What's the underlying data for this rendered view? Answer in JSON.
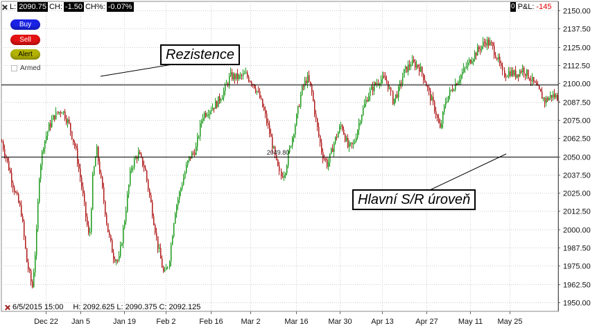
{
  "header": {
    "last_label": "L:",
    "last_value": "2090.75",
    "change_label": "CH:",
    "change_value": "-1.50",
    "change_pct_label": "CH%:",
    "change_pct_value": "-0.07%",
    "position_value": "0",
    "pl_label": "P&L:",
    "pl_value": "-145"
  },
  "trade_buttons": {
    "buy": "Buy",
    "sell": "Sell",
    "alert": "Alert",
    "armed": "Armed"
  },
  "annotations": {
    "resistance": "Rezistence",
    "sr_level": "Hlavní S/R úroveň",
    "level_tag": "2049.80"
  },
  "bar_info": {
    "date": "6/5/2015 15:00",
    "high": "H: 2092.625",
    "low": "L: 2090.375",
    "close": "C: 2092.125"
  },
  "colors": {
    "up": "#1a9a1a",
    "down": "#b01818",
    "grid": "#cccccc",
    "level_line": "#000000"
  },
  "chart_data": {
    "type": "candlestick",
    "title": "",
    "xlabel": "",
    "ylabel": "",
    "ylim": [
      1943.75,
      2156.25
    ],
    "y_ticks": [
      1950.0,
      1962.5,
      1975.0,
      1987.5,
      2000.0,
      2012.5,
      2025.0,
      2037.5,
      2050.0,
      2062.5,
      2075.0,
      2087.5,
      2100.0,
      2112.5,
      2125.0,
      2137.5,
      2150.0
    ],
    "y_tick_labels": [
      "1950.00",
      "1962.50",
      "1975.00",
      "1987.50",
      "2000.00",
      "2012.50",
      "2025.00",
      "2037.50",
      "2050.00",
      "2062.50",
      "2075.00",
      "2087.50",
      "2100.00",
      "2112.50",
      "2125.00",
      "2137.50",
      "2150.00"
    ],
    "x_labels": [
      "Dec 22",
      "Jan 5",
      "Jan 19",
      "Feb 2",
      "Feb 16",
      "Mar 2",
      "Mar 16",
      "Mar 30",
      "Apr 13",
      "Apr 27",
      "May 11",
      "May 25"
    ],
    "x_label_positions": [
      0.08,
      0.142,
      0.22,
      0.295,
      0.376,
      0.447,
      0.529,
      0.608,
      0.684,
      0.763,
      0.842,
      0.913
    ],
    "grid": true,
    "horizontal_levels": [
      {
        "value": 2099.0,
        "label": ""
      },
      {
        "value": 2049.8,
        "label": "2049.80"
      }
    ],
    "price_path": [
      [
        0.0,
        2060
      ],
      [
        0.01,
        2046
      ],
      [
        0.022,
        2028
      ],
      [
        0.035,
        2012
      ],
      [
        0.045,
        1978
      ],
      [
        0.055,
        1960
      ],
      [
        0.062,
        1992
      ],
      [
        0.068,
        2040
      ],
      [
        0.075,
        2058
      ],
      [
        0.085,
        2070
      ],
      [
        0.095,
        2078
      ],
      [
        0.108,
        2082
      ],
      [
        0.12,
        2072
      ],
      [
        0.132,
        2055
      ],
      [
        0.142,
        2032
      ],
      [
        0.15,
        2010
      ],
      [
        0.157,
        1992
      ],
      [
        0.163,
        2035
      ],
      [
        0.17,
        2055
      ],
      [
        0.18,
        2028
      ],
      [
        0.19,
        2000
      ],
      [
        0.2,
        1982
      ],
      [
        0.21,
        1978
      ],
      [
        0.22,
        2005
      ],
      [
        0.232,
        2042
      ],
      [
        0.245,
        2052
      ],
      [
        0.257,
        2042
      ],
      [
        0.268,
        2018
      ],
      [
        0.28,
        1990
      ],
      [
        0.292,
        1968
      ],
      [
        0.3,
        1978
      ],
      [
        0.31,
        2012
      ],
      [
        0.322,
        2030
      ],
      [
        0.335,
        2048
      ],
      [
        0.348,
        2055
      ],
      [
        0.36,
        2078
      ],
      [
        0.372,
        2082
      ],
      [
        0.385,
        2086
      ],
      [
        0.398,
        2094
      ],
      [
        0.41,
        2105
      ],
      [
        0.425,
        2104
      ],
      [
        0.438,
        2106
      ],
      [
        0.452,
        2100
      ],
      [
        0.462,
        2092
      ],
      [
        0.472,
        2080
      ],
      [
        0.482,
        2065
      ],
      [
        0.492,
        2048
      ],
      [
        0.5,
        2036
      ],
      [
        0.508,
        2040
      ],
      [
        0.518,
        2058
      ],
      [
        0.528,
        2075
      ],
      [
        0.538,
        2095
      ],
      [
        0.548,
        2104
      ],
      [
        0.556,
        2095
      ],
      [
        0.565,
        2072
      ],
      [
        0.575,
        2052
      ],
      [
        0.585,
        2044
      ],
      [
        0.597,
        2060
      ],
      [
        0.61,
        2072
      ],
      [
        0.622,
        2056
      ],
      [
        0.632,
        2058
      ],
      [
        0.645,
        2078
      ],
      [
        0.658,
        2092
      ],
      [
        0.668,
        2098
      ],
      [
        0.68,
        2103
      ],
      [
        0.692,
        2102
      ],
      [
        0.702,
        2088
      ],
      [
        0.712,
        2095
      ],
      [
        0.722,
        2108
      ],
      [
        0.735,
        2114
      ],
      [
        0.748,
        2112
      ],
      [
        0.758,
        2104
      ],
      [
        0.768,
        2092
      ],
      [
        0.778,
        2082
      ],
      [
        0.787,
        2068
      ],
      [
        0.797,
        2088
      ],
      [
        0.808,
        2096
      ],
      [
        0.82,
        2103
      ],
      [
        0.832,
        2110
      ],
      [
        0.845,
        2118
      ],
      [
        0.858,
        2124
      ],
      [
        0.87,
        2129
      ],
      [
        0.88,
        2126
      ],
      [
        0.89,
        2118
      ],
      [
        0.9,
        2106
      ],
      [
        0.912,
        2108
      ],
      [
        0.922,
        2106
      ],
      [
        0.935,
        2110
      ],
      [
        0.948,
        2104
      ],
      [
        0.962,
        2096
      ],
      [
        0.975,
        2088
      ],
      [
        0.988,
        2092
      ],
      [
        1.0,
        2090
      ]
    ],
    "last_bar": {
      "date": "6/5/2015 15:00",
      "high": 2092.625,
      "low": 2090.375,
      "close": 2092.125
    }
  }
}
